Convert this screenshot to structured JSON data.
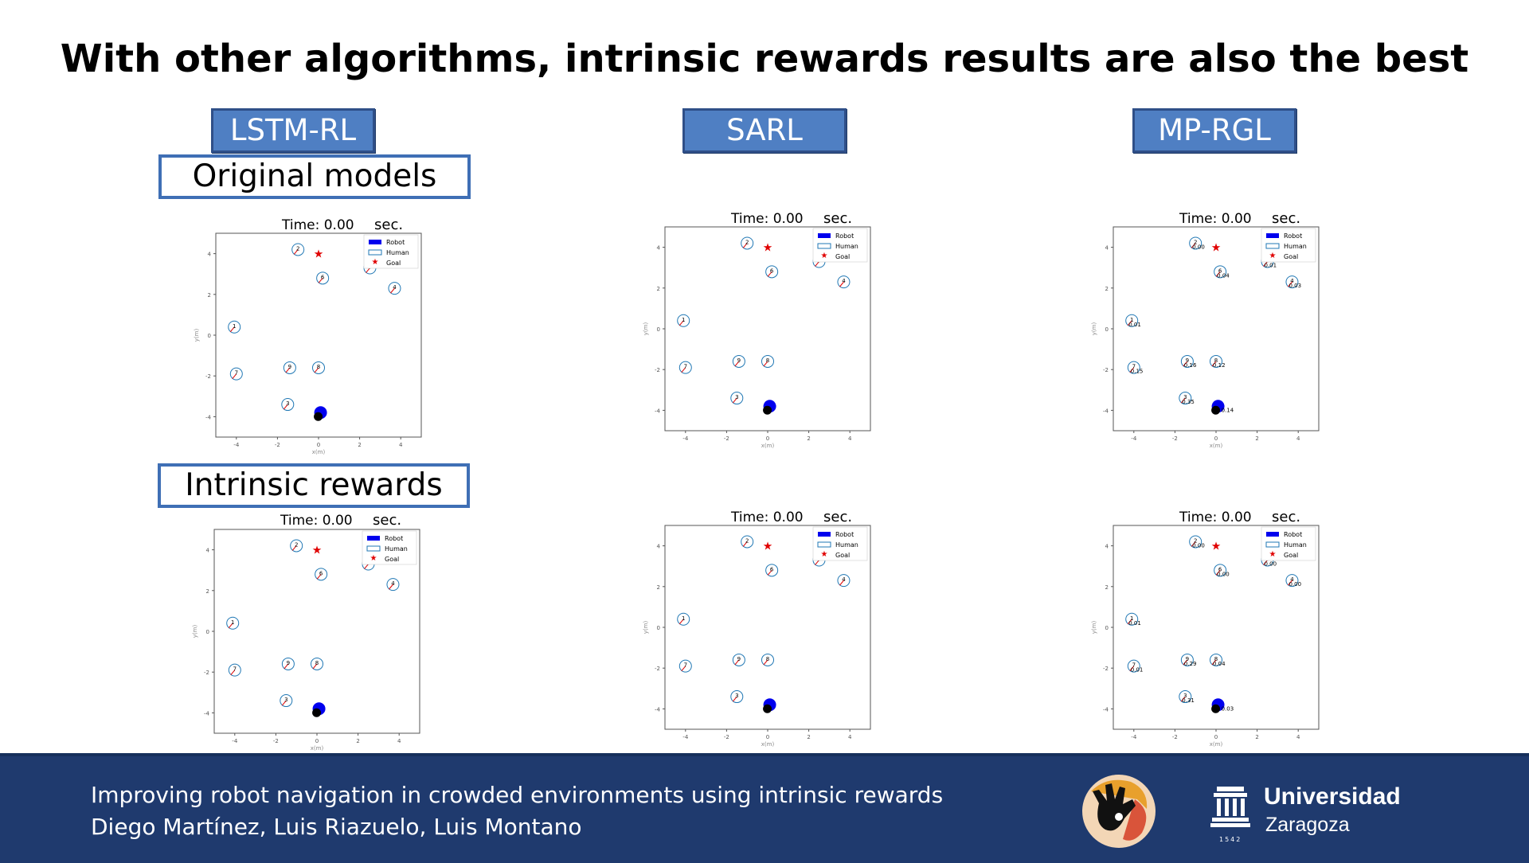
{
  "slide": {
    "title": "With other algorithms, intrinsic rewards results are also the best",
    "algorithms": [
      "LSTM-RL",
      "SARL",
      "MP-RGL"
    ],
    "row_labels": [
      "Original models",
      "Intrinsic rewards"
    ]
  },
  "plot_text": {
    "time_prefix": "Time: 0.00",
    "time_unit": "sec.",
    "legend": [
      "Robot",
      "Human",
      "Goal"
    ],
    "x_ticks": [
      "-4",
      "-2",
      "0",
      "2",
      "4"
    ],
    "y_ticks": [
      "4",
      "2",
      "0",
      "-2",
      "-4"
    ],
    "x_label": "x(m)",
    "y_label": "y(m)"
  },
  "humans": [
    {
      "id": "1",
      "x": -4.1,
      "y": 0.4
    },
    {
      "id": "2",
      "x": -1.0,
      "y": 4.2
    },
    {
      "id": "3",
      "x": -1.5,
      "y": -3.4
    },
    {
      "id": "4",
      "x": 3.7,
      "y": 2.3
    },
    {
      "id": "5",
      "x": 2.5,
      "y": 3.3
    },
    {
      "id": "6",
      "x": 0.2,
      "y": 2.8
    },
    {
      "id": "7",
      "x": -4.0,
      "y": -1.9
    },
    {
      "id": "8",
      "x": 0.0,
      "y": -1.6
    },
    {
      "id": "9",
      "x": -1.4,
      "y": -1.6
    }
  ],
  "robot": {
    "x": 0.1,
    "y": -3.8
  },
  "goal": {
    "x": 0.0,
    "y": 4.0
  },
  "mprgl_values": {
    "original": {
      "2": "0.00",
      "1": "0.01",
      "6": "0.04",
      "5": "0.01",
      "4": "0.03",
      "7": "0.15",
      "9": "0.16",
      "8": "0.12",
      "3": "0.35",
      "r": "0.14"
    },
    "intrinsic": {
      "2": "0.00",
      "1": "0.01",
      "6": "0.00",
      "5": "0.00",
      "4": "0.00",
      "7": "0.01",
      "9": "0.29",
      "8": "0.04",
      "3": "0.31",
      "r": "0.03"
    }
  },
  "footer": {
    "line1": "Improving robot navigation in crowded environments using intrinsic rewards",
    "line2": "Diego Martínez, Luis Riazuelo, Luis Montano",
    "university": "Universidad",
    "city": "Zaragoza",
    "year": "1542"
  },
  "colors": {
    "footer_bg": "#1f3a6e",
    "algo_box": "#4f7fc3",
    "robot": "#0000ee",
    "goal": "#e00000",
    "human": "#1f77b4"
  }
}
